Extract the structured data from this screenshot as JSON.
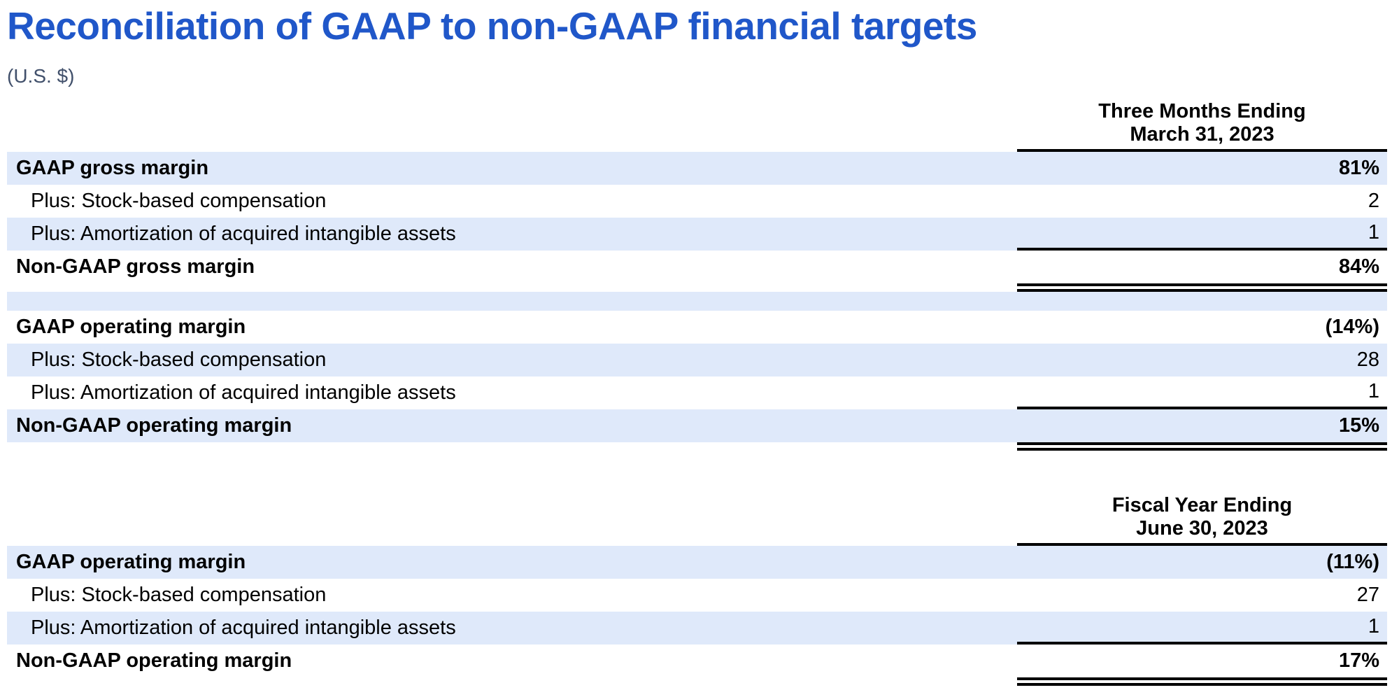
{
  "page": {
    "title": "Reconciliation of GAAP to non-GAAP financial targets",
    "subtitle": "(U.S. $)"
  },
  "colors": {
    "title_blue": "#2057c9",
    "subtitle_navy": "#41506b",
    "row_shade": "#dfe9fa",
    "rule_black": "#000000"
  },
  "tables": [
    {
      "period": {
        "line1": "Three Months Ending",
        "line2": "March 31, 2023"
      },
      "rows": [
        {
          "label": "GAAP gross margin",
          "value": "81%"
        },
        {
          "label": "Plus: Stock-based compensation",
          "value": "2"
        },
        {
          "label": "Plus: Amortization of acquired intangible assets",
          "value": "1"
        },
        {
          "label": "Non-GAAP gross margin",
          "value": "84%"
        },
        {
          "label": "GAAP operating margin",
          "value": "(14%)"
        },
        {
          "label": "Plus: Stock-based compensation",
          "value": "28"
        },
        {
          "label": "Plus: Amortization of acquired intangible assets",
          "value": "1"
        },
        {
          "label": "Non-GAAP operating margin",
          "value": "15%"
        }
      ]
    },
    {
      "period": {
        "line1": "Fiscal Year Ending",
        "line2": "June 30, 2023"
      },
      "rows": [
        {
          "label": "GAAP operating margin",
          "value": "(11%)"
        },
        {
          "label": "Plus: Stock-based compensation",
          "value": "27"
        },
        {
          "label": "Plus: Amortization of acquired intangible assets",
          "value": "1"
        },
        {
          "label": "Non-GAAP operating margin",
          "value": "17%"
        }
      ]
    }
  ]
}
